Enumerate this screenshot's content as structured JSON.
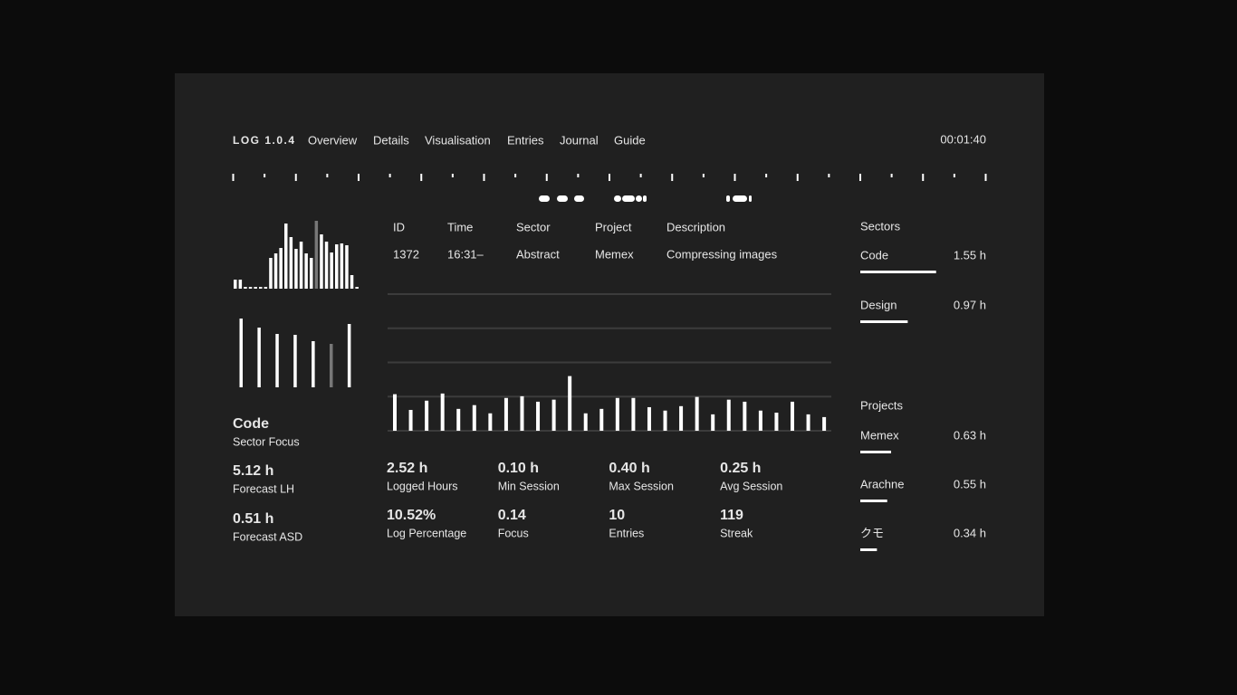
{
  "nav": {
    "brand": "LOG 1.0.4",
    "items": [
      "Overview",
      "Details",
      "Visualisation",
      "Entries",
      "Journal",
      "Guide"
    ],
    "active": 0,
    "clock": "00:01:40"
  },
  "hour_chart": {
    "values": [
      10,
      10,
      2,
      2,
      2,
      2,
      2,
      34,
      39,
      45,
      72,
      57,
      44,
      52,
      39,
      34,
      75,
      60,
      52,
      40,
      49,
      50,
      48,
      15,
      2
    ],
    "color": "#ffffff",
    "highlight": 16,
    "highlight_color": "#777777"
  },
  "week_chart": {
    "values": [
      76,
      66,
      59,
      58,
      51,
      48,
      70
    ],
    "color": "#ffffff",
    "highlight": 5,
    "highlight_color": "#777777"
  },
  "summary": [
    {
      "value": "Code",
      "label": "Sector Focus"
    },
    {
      "value": "5.12 h",
      "label": "Forecast LH"
    },
    {
      "value": "0.51 h",
      "label": "Forecast ASD"
    }
  ],
  "table": {
    "headers": [
      "ID",
      "Time",
      "Sector",
      "Project",
      "Description"
    ],
    "rows": [
      [
        "1372",
        "16:31–",
        "Abstract",
        "Memex",
        "Compressing images"
      ]
    ]
  },
  "day_chart": {
    "values": [
      1.07,
      0.61,
      0.88,
      1.09,
      0.64,
      0.75,
      0.51,
      0.96,
      1.01,
      0.85,
      0.91,
      1.6,
      0.51,
      0.64,
      0.96,
      0.96,
      0.69,
      0.59,
      0.72,
      0.99,
      0.48,
      0.91,
      0.85,
      0.59,
      0.53,
      0.85,
      0.48,
      0.4
    ],
    "ylim": [
      0,
      4
    ],
    "yticks": [
      0,
      1,
      2,
      3,
      4
    ],
    "grid": true,
    "color": "#ffffff"
  },
  "stats": [
    {
      "value": "2.52 h",
      "label": "Logged Hours"
    },
    {
      "value": "0.10 h",
      "label": "Min Session"
    },
    {
      "value": "0.40 h",
      "label": "Max Session"
    },
    {
      "value": "0.25 h",
      "label": "Avg Session"
    },
    {
      "value": "10.52%",
      "label": "Log Percentage"
    },
    {
      "value": "0.14",
      "label": "Focus"
    },
    {
      "value": "10",
      "label": "Entries"
    },
    {
      "value": "119",
      "label": "Streak"
    }
  ],
  "sectors": {
    "title": "Sectors",
    "items": [
      {
        "name": "Code",
        "value": 1.55,
        "value_label": "1.55 h"
      },
      {
        "name": "Design",
        "value": 0.97,
        "value_label": "0.97 h"
      }
    ]
  },
  "projects": {
    "title": "Projects",
    "items": [
      {
        "name": "Memex",
        "value": 0.63,
        "value_label": "0.63 h"
      },
      {
        "name": "Arachne",
        "value": 0.55,
        "value_label": "0.55 h"
      },
      {
        "name": "クモ",
        "value": 0.34,
        "value_label": "0.34 h"
      }
    ]
  }
}
